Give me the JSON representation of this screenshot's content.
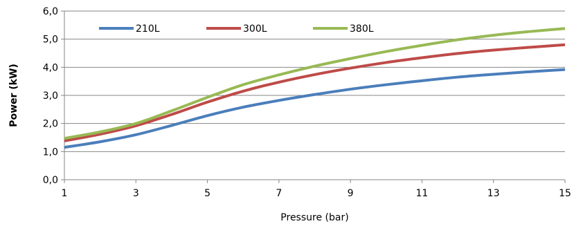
{
  "chart_data": {
    "type": "line",
    "xlabel": "Pressure (bar)",
    "ylabel": "Power (kW)",
    "xlim": [
      1,
      15
    ],
    "ylim": [
      0,
      6
    ],
    "xticks": [
      1,
      3,
      5,
      7,
      9,
      11,
      13,
      15
    ],
    "xtick_labels": [
      "1",
      "3",
      "5",
      "7",
      "9",
      "11",
      "13",
      "15"
    ],
    "yticks": [
      0,
      1,
      2,
      3,
      4,
      5,
      6
    ],
    "ytick_labels": [
      "0,0",
      "1,0",
      "2,0",
      "3,0",
      "4,0",
      "5,0",
      "6,0"
    ],
    "grid": "horizontal",
    "legend_position": "top-left",
    "series": [
      {
        "name": "210L",
        "color": "#4a7ebb",
        "x": [
          1,
          2,
          3,
          4,
          5,
          6,
          7,
          8,
          9,
          10,
          11,
          12,
          13,
          14,
          15
        ],
        "y": [
          1.15,
          1.35,
          1.6,
          1.93,
          2.28,
          2.58,
          2.82,
          3.03,
          3.22,
          3.38,
          3.52,
          3.65,
          3.75,
          3.84,
          3.92
        ]
      },
      {
        "name": "300L",
        "color": "#be4b48",
        "x": [
          1,
          2,
          3,
          4,
          5,
          6,
          7,
          8,
          9,
          10,
          11,
          12,
          13,
          14,
          15
        ],
        "y": [
          1.38,
          1.62,
          1.92,
          2.32,
          2.76,
          3.15,
          3.47,
          3.74,
          3.97,
          4.17,
          4.34,
          4.49,
          4.61,
          4.71,
          4.8
        ]
      },
      {
        "name": "380L",
        "color": "#98b954",
        "x": [
          1,
          2,
          3,
          4,
          5,
          6,
          7,
          8,
          9,
          10,
          11,
          12,
          13,
          14,
          15
        ],
        "y": [
          1.47,
          1.7,
          2.0,
          2.45,
          2.93,
          3.38,
          3.73,
          4.04,
          4.31,
          4.56,
          4.78,
          4.98,
          5.14,
          5.27,
          5.38
        ]
      }
    ]
  }
}
